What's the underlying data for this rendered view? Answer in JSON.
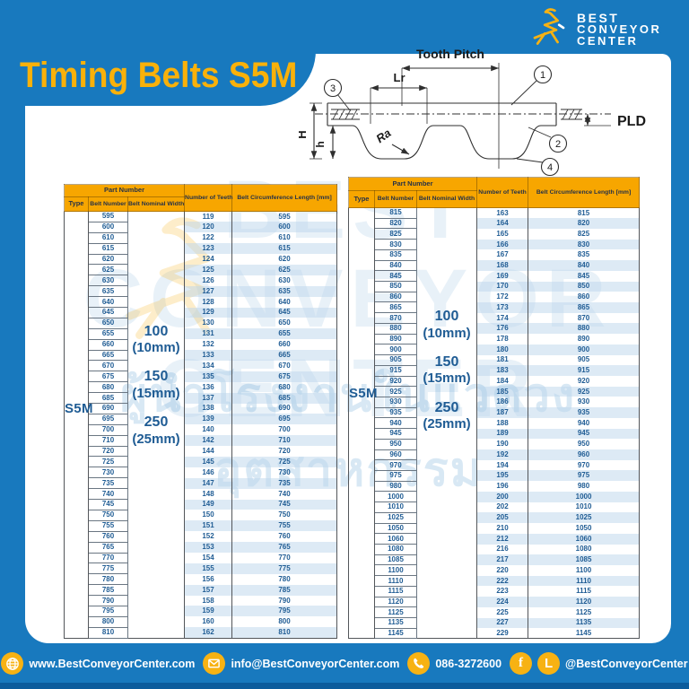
{
  "title": "Timing Belts S5M",
  "logo": {
    "line1": "BEST",
    "line2": "CONVEYOR",
    "line3": "CENTER"
  },
  "colors": {
    "page_blue": "#1879be",
    "accent_yellow": "#f7b213",
    "title_yellow": "#f9b10a",
    "header_orange": "#f7a600",
    "table_text_blue": "#1f5c94",
    "footer_dark_blue": "#0c5c9c"
  },
  "diagram": {
    "tooth_pitch": "Tooth Pitch",
    "lr": "Lr",
    "H": "H",
    "h": "h",
    "ra": "Ra",
    "pld": "PLD",
    "callout_1": "1",
    "callout_2": "2",
    "callout_3": "3",
    "callout_4": "4"
  },
  "table_headers": {
    "part_number": "Part Number",
    "type": "Type",
    "belt_number": "Belt Number",
    "belt_nominal_width": "Belt Nominal Width",
    "number_of_teeth": "Number of Teeth",
    "belt_circumference": "Belt Circumference Length [mm]"
  },
  "left_table": {
    "type": "S5M",
    "widths": [
      "100",
      "(10mm)",
      "150",
      "(15mm)",
      "250",
      "(25mm)"
    ],
    "rows": [
      [
        595,
        119,
        595
      ],
      [
        600,
        120,
        600
      ],
      [
        610,
        122,
        610
      ],
      [
        615,
        123,
        615
      ],
      [
        620,
        124,
        620
      ],
      [
        625,
        125,
        625
      ],
      [
        630,
        126,
        630
      ],
      [
        635,
        127,
        635
      ],
      [
        640,
        128,
        640
      ],
      [
        645,
        129,
        645
      ],
      [
        650,
        130,
        650
      ],
      [
        655,
        131,
        655
      ],
      [
        660,
        132,
        660
      ],
      [
        665,
        133,
        665
      ],
      [
        670,
        134,
        670
      ],
      [
        675,
        135,
        675
      ],
      [
        680,
        136,
        680
      ],
      [
        685,
        137,
        685
      ],
      [
        690,
        138,
        690
      ],
      [
        695,
        139,
        695
      ],
      [
        700,
        140,
        700
      ],
      [
        710,
        142,
        710
      ],
      [
        720,
        144,
        720
      ],
      [
        725,
        145,
        725
      ],
      [
        730,
        146,
        730
      ],
      [
        735,
        147,
        735
      ],
      [
        740,
        148,
        740
      ],
      [
        745,
        149,
        745
      ],
      [
        750,
        150,
        750
      ],
      [
        755,
        151,
        755
      ],
      [
        760,
        152,
        760
      ],
      [
        765,
        153,
        765
      ],
      [
        770,
        154,
        770
      ],
      [
        775,
        155,
        775
      ],
      [
        780,
        156,
        780
      ],
      [
        785,
        157,
        785
      ],
      [
        790,
        158,
        790
      ],
      [
        795,
        159,
        795
      ],
      [
        800,
        160,
        800
      ],
      [
        810,
        162,
        810
      ]
    ]
  },
  "right_table": {
    "type": "S5M",
    "widths": [
      "100",
      "(10mm)",
      "150",
      "(15mm)",
      "250",
      "(25mm)"
    ],
    "rows": [
      [
        815,
        163,
        815
      ],
      [
        820,
        164,
        820
      ],
      [
        825,
        165,
        825
      ],
      [
        830,
        166,
        830
      ],
      [
        835,
        167,
        835
      ],
      [
        840,
        168,
        840
      ],
      [
        845,
        169,
        845
      ],
      [
        850,
        170,
        850
      ],
      [
        860,
        172,
        860
      ],
      [
        865,
        173,
        865
      ],
      [
        870,
        174,
        870
      ],
      [
        880,
        176,
        880
      ],
      [
        890,
        178,
        890
      ],
      [
        900,
        180,
        900
      ],
      [
        905,
        181,
        905
      ],
      [
        915,
        183,
        915
      ],
      [
        920,
        184,
        920
      ],
      [
        925,
        185,
        925
      ],
      [
        930,
        186,
        930
      ],
      [
        935,
        187,
        935
      ],
      [
        940,
        188,
        940
      ],
      [
        945,
        189,
        945
      ],
      [
        950,
        190,
        950
      ],
      [
        960,
        192,
        960
      ],
      [
        970,
        194,
        970
      ],
      [
        975,
        195,
        975
      ],
      [
        980,
        196,
        980
      ],
      [
        1000,
        200,
        1000
      ],
      [
        1010,
        202,
        1010
      ],
      [
        1025,
        205,
        1025
      ],
      [
        1050,
        210,
        1050
      ],
      [
        1060,
        212,
        1060
      ],
      [
        1080,
        216,
        1080
      ],
      [
        1085,
        217,
        1085
      ],
      [
        1100,
        220,
        1100
      ],
      [
        1110,
        222,
        1110
      ],
      [
        1115,
        223,
        1115
      ],
      [
        1120,
        224,
        1120
      ],
      [
        1125,
        225,
        1125
      ],
      [
        1135,
        227,
        1135
      ],
      [
        1145,
        229,
        1145
      ]
    ]
  },
  "watermark": {
    "line1": "BEST",
    "line2": "CONVEYOR",
    "line3": "CENTER",
    "thai": "ผู้นำโรงงานในแวดวงอุตสาหกรรม"
  },
  "footer": {
    "website": "www.BestConveyorCenter.com",
    "email": "info@BestConveyorCenter.com",
    "phone": "086-3272600",
    "social": "@BestConveyorCenter",
    "facebook_glyph": "f",
    "line_glyph": "L"
  }
}
